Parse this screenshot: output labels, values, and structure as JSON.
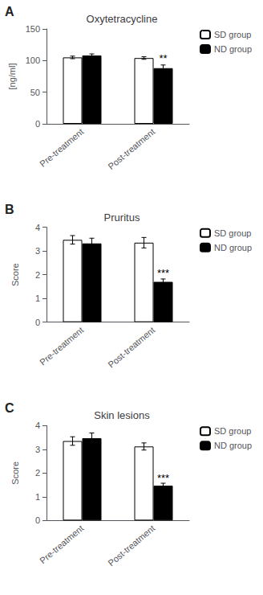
{
  "chart_data": [
    {
      "type": "bar",
      "label": "A",
      "title": "Oxytetracycline",
      "ylabel": "[ng/ml]",
      "categories": [
        "Pre-treatment",
        "Post-treatment"
      ],
      "series": [
        {
          "name": "SD group",
          "color": "white",
          "edge_color": "black",
          "values": [
            105.0,
            104.0
          ],
          "errors": [
            2.0,
            2.0
          ]
        },
        {
          "name": "ND group",
          "color": "black",
          "edge_color": "black",
          "values": [
            108.0,
            88.0
          ],
          "errors": [
            2.5,
            5.0
          ]
        }
      ],
      "annotations": [
        {
          "text": "**",
          "category": "Post-treatment",
          "series": "ND group",
          "y": 95
        }
      ],
      "ylim": [
        0,
        150
      ],
      "yticks": [
        0,
        50,
        100,
        150
      ],
      "grid": false,
      "legend": "right"
    },
    {
      "type": "bar",
      "label": "B",
      "title": "Pruritus",
      "ylabel": "Score",
      "categories": [
        "Pre-treatment",
        "Post-treatment"
      ],
      "series": [
        {
          "name": "SD group",
          "color": "white",
          "edge_color": "black",
          "values": [
            3.47,
            3.35
          ],
          "errors": [
            0.18,
            0.22
          ]
        },
        {
          "name": "ND group",
          "color": "black",
          "edge_color": "black",
          "values": [
            3.32,
            1.7
          ],
          "errors": [
            0.22,
            0.12
          ]
        }
      ],
      "annotations": [
        {
          "text": "***",
          "category": "Post-treatment",
          "series": "ND group",
          "y": 1.84
        }
      ],
      "ylim": [
        0,
        4
      ],
      "yticks": [
        0,
        1,
        2,
        3,
        4
      ],
      "grid": false,
      "legend": "right"
    },
    {
      "type": "bar",
      "label": "C",
      "title": "Skin lesions",
      "ylabel": "Score",
      "categories": [
        "Pre-treatment",
        "Post-treatment"
      ],
      "series": [
        {
          "name": "SD group",
          "color": "white",
          "edge_color": "black",
          "values": [
            3.35,
            3.12
          ],
          "errors": [
            0.18,
            0.15
          ]
        },
        {
          "name": "ND group",
          "color": "black",
          "edge_color": "black",
          "values": [
            3.47,
            1.47
          ],
          "errors": [
            0.22,
            0.1
          ]
        }
      ],
      "annotations": [
        {
          "text": "***",
          "category": "Post-treatment",
          "series": "ND group",
          "y": 1.58
        }
      ],
      "ylim": [
        0,
        4
      ],
      "yticks": [
        0,
        1,
        2,
        3,
        4
      ],
      "grid": false,
      "legend": "right"
    }
  ]
}
